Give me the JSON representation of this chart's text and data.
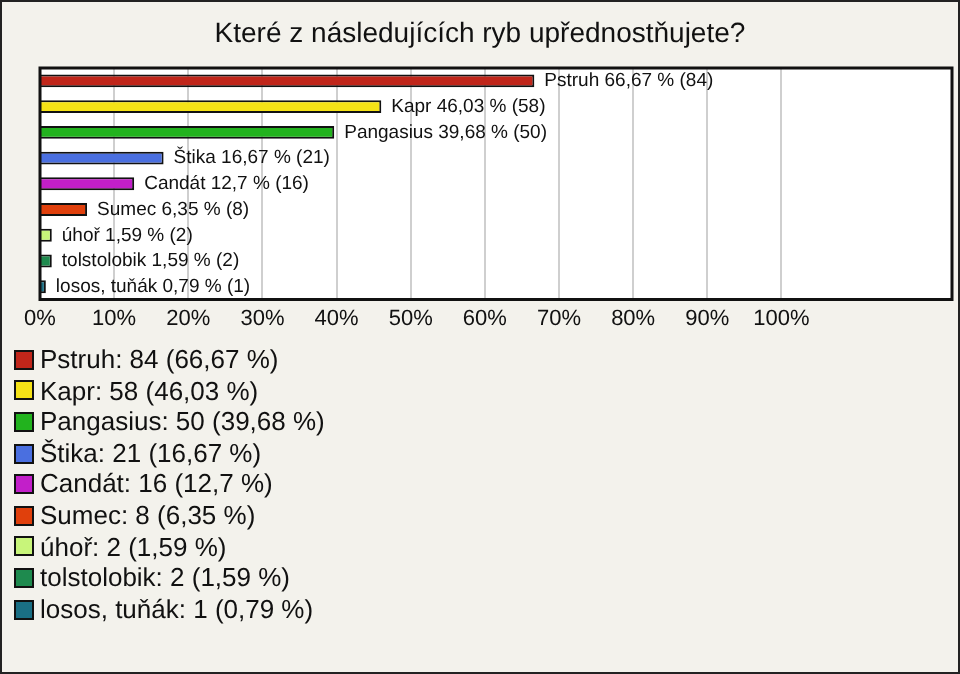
{
  "chart_data": {
    "type": "bar",
    "orientation": "horizontal",
    "title": "Které z následujících ryb upřednostňujete?",
    "categories": [
      null,
      null,
      null,
      null,
      null,
      null,
      null,
      null,
      null
    ],
    "values": [
      66.67,
      46.03,
      39.68,
      16.67,
      12.7,
      6.35,
      1.59,
      1.59,
      0.79
    ],
    "colors": [
      "#c0261a",
      "#f5e216",
      "#22b31e",
      "#4a6fe0",
      "#c21fc9",
      "#e0400c",
      "#c8f57a",
      "#1e8a4e",
      "#1a6f84"
    ],
    "value_labels": [
      "Pstruh 66,67 % (84)",
      "Kapr 46,03 % (58)",
      "Pangasius 39,68 % (50)",
      "Štika 16,67 % (21)",
      "Candát 12,7 % (16)",
      "Sumec 6,35 % (8)",
      "úhoř 1,59 % (2)",
      "tolstolobik 1,59 % (2)",
      "losos, tuňák 0,79 % (1)"
    ],
    "xlim": [
      0,
      123
    ],
    "xticks": [
      {
        "value": 0,
        "label": "0%"
      },
      {
        "value": 10,
        "label": "10%"
      },
      {
        "value": 20,
        "label": "20%"
      },
      {
        "value": 30,
        "label": "30%"
      },
      {
        "value": 40,
        "label": "40%"
      },
      {
        "value": 50,
        "label": "50%"
      },
      {
        "value": 60,
        "label": "60%"
      },
      {
        "value": 70,
        "label": "70%"
      },
      {
        "value": 80,
        "label": "80%"
      },
      {
        "value": 90,
        "label": "90%"
      },
      {
        "value": 100,
        "label": "100%"
      }
    ],
    "grid": "x",
    "tick_labels": "x",
    "annotations": [
      "Pstruh: 84 (66,67 %)",
      "Kapr: 58 (46,03 %)",
      "Pangasius: 50 (39,68 %)",
      "Štika: 21 (16,67 %)",
      "Candát: 16 (12,7 %)",
      "Sumec: 8 (6,35 %)",
      "úhoř: 2 (1,59 %)",
      "tolstolobik: 2 (1,59 %)",
      "losos, tuňák: 1 (0,79 %)"
    ]
  }
}
